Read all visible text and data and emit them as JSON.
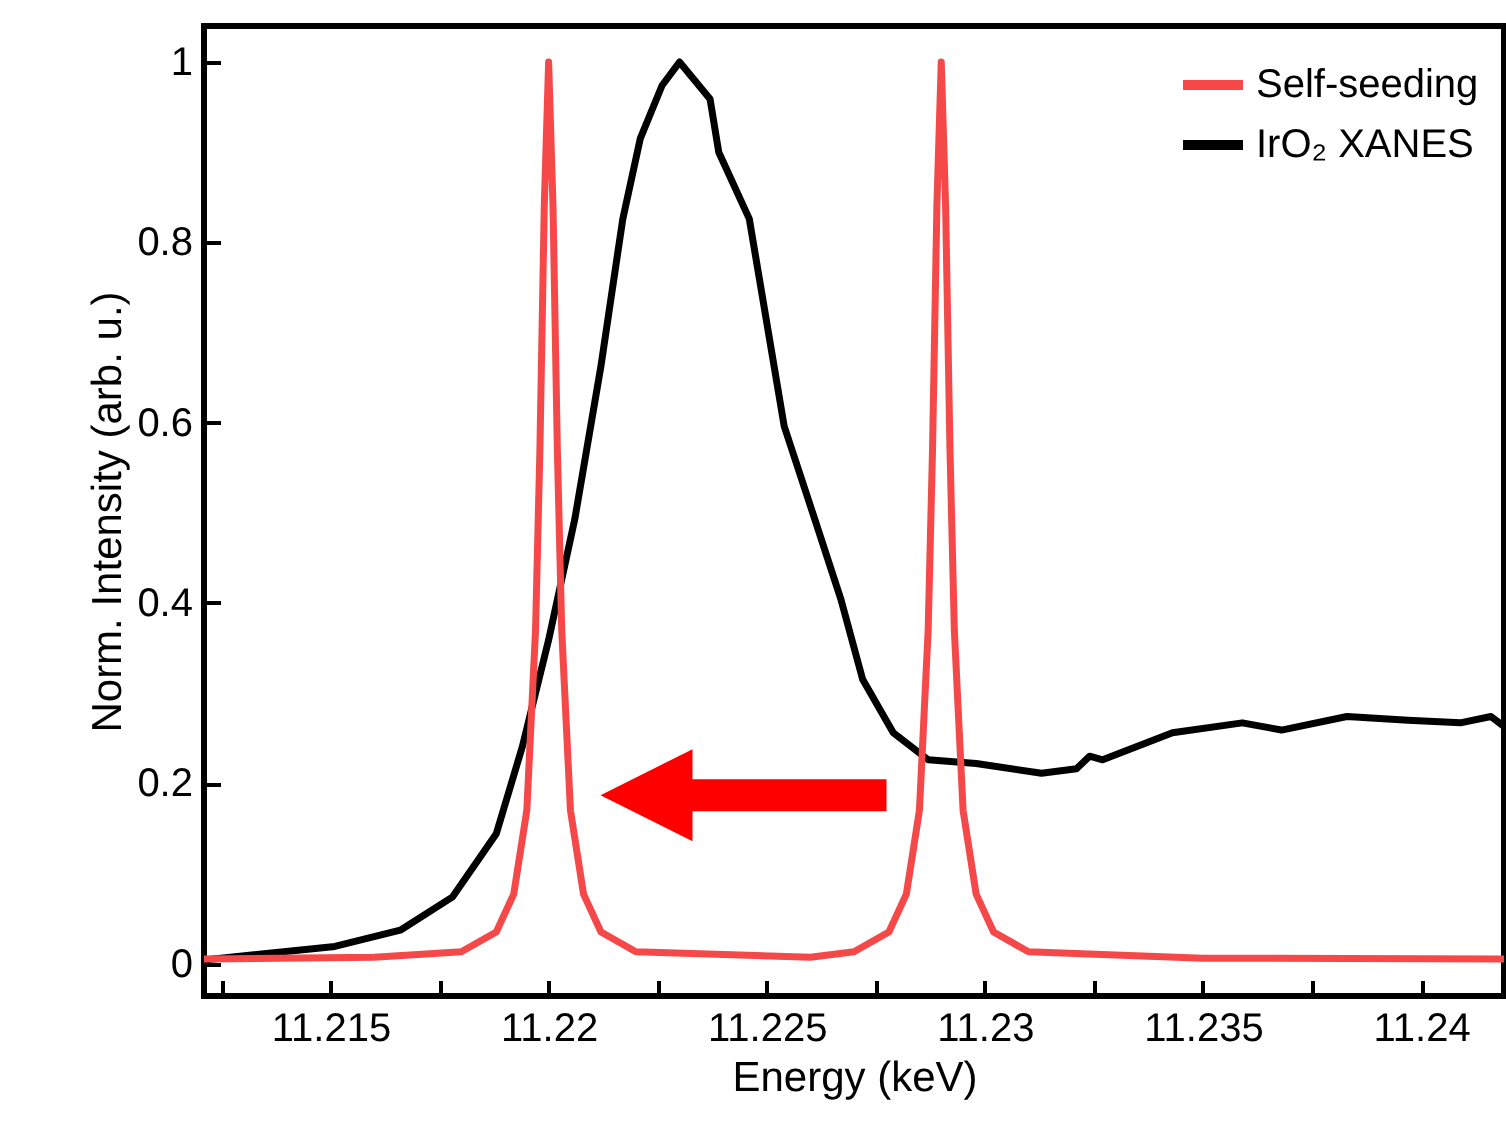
{
  "chart_data": {
    "type": "line",
    "xlabel": "Energy (keV)",
    "ylabel": "Norm. Intensity (arb. u.)",
    "xlim": [
      11.2121,
      11.2419
    ],
    "ylim": [
      -0.036,
      1.04
    ],
    "xticks": [
      {
        "value": 11.2125,
        "label": null
      },
      11.215,
      {
        "value": 11.2175,
        "label": null
      },
      11.22,
      {
        "value": 11.2225,
        "label": null
      },
      11.225,
      {
        "value": 11.2275,
        "label": null
      },
      11.23,
      {
        "value": 11.2325,
        "label": null
      },
      11.235,
      {
        "value": 11.2375,
        "label": null
      },
      11.24
    ],
    "yticks": [
      0,
      0.2,
      0.4,
      0.6,
      0.8,
      1
    ],
    "grid": false,
    "legend": "top right",
    "line_style": "solid",
    "series": [
      {
        "name": "Self-seeding",
        "color": "#f54848",
        "x": [
          11.2121,
          11.216,
          11.218,
          11.2188,
          11.2192,
          11.2195,
          11.2197,
          11.2198,
          11.2199,
          11.22,
          11.2201,
          11.2202,
          11.2203,
          11.2205,
          11.2208,
          11.2212,
          11.222,
          11.226,
          11.227,
          11.2278,
          11.2282,
          11.2285,
          11.2287,
          11.2288,
          11.2289,
          11.229,
          11.2291,
          11.2292,
          11.2293,
          11.2295,
          11.2298,
          11.2302,
          11.231,
          11.235,
          11.2419
        ],
        "values": [
          0.005,
          0.007,
          0.013,
          0.035,
          0.077,
          0.17,
          0.37,
          0.57,
          0.84,
          1.0,
          0.84,
          0.57,
          0.37,
          0.17,
          0.077,
          0.035,
          0.013,
          0.007,
          0.013,
          0.035,
          0.077,
          0.17,
          0.37,
          0.57,
          0.84,
          1.0,
          0.84,
          0.57,
          0.37,
          0.17,
          0.077,
          0.035,
          0.013,
          0.006,
          0.005
        ]
      },
      {
        "name": "IrO₂ XANES",
        "color": "#000000",
        "x": [
          11.2121,
          11.2151,
          11.2166,
          11.2178,
          11.2188,
          11.2194,
          11.22,
          11.2206,
          11.2212,
          11.2217,
          11.2221,
          11.2226,
          11.223,
          11.2237,
          11.2239,
          11.2246,
          11.2254,
          11.2261,
          11.2267,
          11.2272,
          11.2279,
          11.2287,
          11.2298,
          11.2313,
          11.2321,
          11.2324,
          11.2327,
          11.2343,
          11.2359,
          11.2368,
          11.2383,
          11.2397,
          11.2409,
          11.2416,
          11.2419
        ],
        "values": [
          0.004,
          0.019,
          0.037,
          0.074,
          0.144,
          0.241,
          0.359,
          0.493,
          0.663,
          0.826,
          0.915,
          0.974,
          1.0,
          0.959,
          0.9,
          0.826,
          0.596,
          0.493,
          0.404,
          0.315,
          0.256,
          0.226,
          0.222,
          0.211,
          0.216,
          0.23,
          0.226,
          0.256,
          0.267,
          0.259,
          0.274,
          0.27,
          0.267,
          0.274,
          0.263
        ]
      }
    ]
  }
}
